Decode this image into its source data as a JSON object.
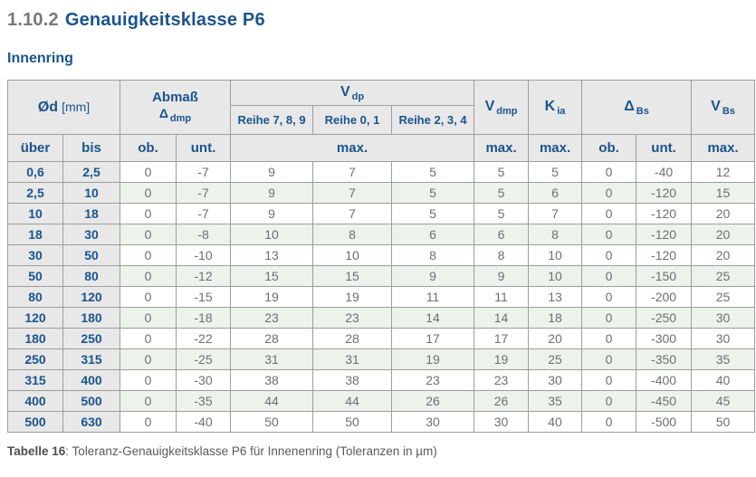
{
  "page": {
    "heading": {
      "number": "1.10.2",
      "title": "Genauigkeitsklasse P6"
    },
    "subtitle": "Innenring",
    "caption": {
      "label": "Tabelle 16",
      "text": ": Toleranz-Genauigkeitsklasse P6 für Innenenring (Toleranzen in µm)"
    }
  },
  "table": {
    "headers": {
      "od": {
        "main": "Ød",
        "unit": "[mm]"
      },
      "abmass": {
        "title": "Abmaß",
        "symbol": "Δ",
        "sub": "dmp"
      },
      "vdp": {
        "main": "V",
        "sub": "dp"
      },
      "vdmp": {
        "main": "V",
        "sub": "dmp"
      },
      "kia": {
        "main": "K",
        "sub": "ia"
      },
      "delta_bs": {
        "main": "Δ",
        "sub": "Bs"
      },
      "vbs": {
        "main": "V",
        "sub": "Bs"
      },
      "reihe": [
        "Reihe 7, 8, 9",
        "Reihe 0, 1",
        "Reihe 2, 3, 4"
      ],
      "sub_row": [
        "über",
        "bis",
        "ob.",
        "unt.",
        "max.",
        "max.",
        "max.",
        "ob.",
        "unt.",
        "max."
      ]
    },
    "rows": [
      [
        "0,6",
        "2,5",
        "0",
        "-7",
        "9",
        "7",
        "5",
        "5",
        "5",
        "0",
        "-40",
        "12"
      ],
      [
        "2,5",
        "10",
        "0",
        "-7",
        "9",
        "7",
        "5",
        "5",
        "6",
        "0",
        "-120",
        "15"
      ],
      [
        "10",
        "18",
        "0",
        "-7",
        "9",
        "7",
        "5",
        "5",
        "7",
        "0",
        "-120",
        "20"
      ],
      [
        "18",
        "30",
        "0",
        "-8",
        "10",
        "8",
        "6",
        "6",
        "8",
        "0",
        "-120",
        "20"
      ],
      [
        "30",
        "50",
        "0",
        "-10",
        "13",
        "10",
        "8",
        "8",
        "10",
        "0",
        "-120",
        "20"
      ],
      [
        "50",
        "80",
        "0",
        "-12",
        "15",
        "15",
        "9",
        "9",
        "10",
        "0",
        "-150",
        "25"
      ],
      [
        "80",
        "120",
        "0",
        "-15",
        "19",
        "19",
        "11",
        "11",
        "13",
        "0",
        "-200",
        "25"
      ],
      [
        "120",
        "180",
        "0",
        "-18",
        "23",
        "23",
        "14",
        "14",
        "18",
        "0",
        "-250",
        "30"
      ],
      [
        "180",
        "250",
        "0",
        "-22",
        "28",
        "28",
        "17",
        "17",
        "20",
        "0",
        "-300",
        "30"
      ],
      [
        "250",
        "315",
        "0",
        "-25",
        "31",
        "31",
        "19",
        "19",
        "25",
        "0",
        "-350",
        "35"
      ],
      [
        "315",
        "400",
        "0",
        "-30",
        "38",
        "38",
        "23",
        "23",
        "30",
        "0",
        "-400",
        "40"
      ],
      [
        "400",
        "500",
        "0",
        "-35",
        "44",
        "44",
        "26",
        "26",
        "35",
        "0",
        "-450",
        "45"
      ],
      [
        "500",
        "630",
        "0",
        "-40",
        "50",
        "50",
        "30",
        "30",
        "40",
        "0",
        "-500",
        "50"
      ]
    ]
  },
  "colors": {
    "accent_blue": "#1a548e",
    "header_bg": "#e8e8e8",
    "alt_row_green": "#ebf3eb",
    "grid": "#9d9d9d",
    "value_text": "#6e6f71",
    "heading_number_gray": "#77787a",
    "caption_text": "#5a5a5c",
    "caption_bold_text": "#4e4e50"
  }
}
